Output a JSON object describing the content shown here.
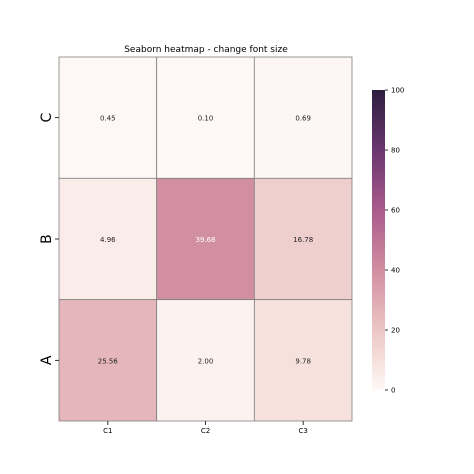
{
  "chart_data": {
    "type": "heatmap",
    "title": "Seaborn heatmap - change font size",
    "xlabel": "",
    "ylabel": "",
    "columns": [
      "C1",
      "C2",
      "C3"
    ],
    "rows": [
      "C",
      "B",
      "A"
    ],
    "values": [
      [
        0.45,
        0.1,
        0.69
      ],
      [
        4.96,
        39.68,
        16.78
      ],
      [
        25.56,
        2.0,
        9.78
      ]
    ],
    "labels": [
      [
        "0.45",
        "0.10",
        "0.69"
      ],
      [
        "4.96",
        "39.68",
        "16.78"
      ],
      [
        "25.56",
        "2.00",
        "9.78"
      ]
    ],
    "vmin": 0,
    "vmax": 100,
    "colorbar": {
      "ticks": [
        0,
        20,
        40,
        60,
        80,
        100
      ],
      "tick_labels": [
        "0",
        "20",
        "40",
        "60",
        "80",
        "100"
      ]
    },
    "colors": {
      "low": "#fdf8f6",
      "high": "#2d1e3e",
      "cell_border": "#808080",
      "light_text": "#ffffff",
      "dark_text": "#222222"
    }
  }
}
